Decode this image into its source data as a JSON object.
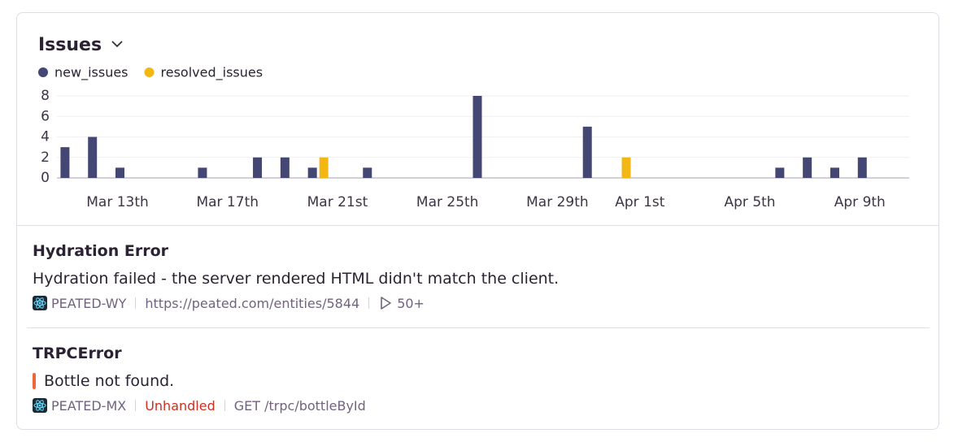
{
  "chart_data": {
    "type": "bar",
    "title": "Issues",
    "categories": [
      null,
      null,
      "Mar 13th",
      null,
      null,
      null,
      "Mar 17th",
      null,
      null,
      null,
      "Mar 21st",
      null,
      null,
      null,
      "Mar 25th",
      null,
      null,
      null,
      "Mar 29th",
      null,
      null,
      "Apr 1st",
      null,
      null,
      null,
      "Apr 5th",
      null,
      null,
      null,
      "Apr 9th",
      null
    ],
    "series": [
      {
        "name": "new_issues",
        "color": "#444674",
        "values": [
          3,
          4,
          1,
          0,
          0,
          1,
          0,
          2,
          2,
          1,
          0,
          1,
          0,
          0,
          0,
          8,
          0,
          0,
          0,
          5,
          0,
          0,
          0,
          0,
          0,
          0,
          1,
          2,
          1,
          2,
          0
        ]
      },
      {
        "name": "resolved_issues",
        "color": "#f2b712",
        "values": [
          0,
          0,
          0,
          0,
          0,
          0,
          0,
          0,
          0,
          2,
          0,
          0,
          0,
          0,
          0,
          0,
          0,
          0,
          0,
          0,
          2,
          0,
          0,
          0,
          0,
          0,
          0,
          0,
          0,
          0,
          0
        ]
      }
    ],
    "ylim": [
      0,
      8
    ],
    "yticks": [
      0,
      2,
      4,
      6,
      8
    ],
    "grid": true
  },
  "issues": [
    {
      "title": "Hydration Error",
      "message": "Hydration failed - the server rendered HTML didn't match the client.",
      "project": "PEATED-WY",
      "url": "https://peated.com/entities/5844",
      "events": "50+"
    },
    {
      "title": "TRPCError",
      "message": "Bottle not found.",
      "project": "PEATED-MX",
      "status": "Unhandled",
      "transaction": "GET /trpc/bottleById"
    }
  ]
}
